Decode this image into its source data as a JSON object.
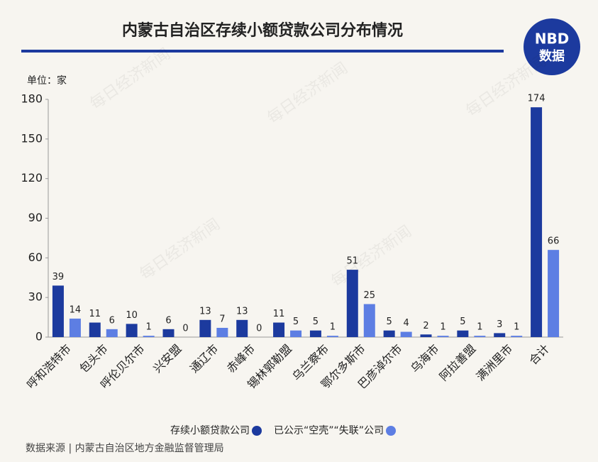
{
  "chart_data": {
    "type": "bar",
    "title": "内蒙古自治区存续小额贷款公司分布情况",
    "unit_label": "单位：家",
    "logo": {
      "top": "NBD",
      "bottom": "数据"
    },
    "watermark": "每日经济新闻",
    "source": "数据来源 | 内蒙古自治区地方金融监督管理局",
    "categories": [
      "呼和浩特市",
      "包头市",
      "呼伦贝尔市",
      "兴安盟",
      "通辽市",
      "赤峰市",
      "锡林郭勒盟",
      "乌兰察布",
      "鄂尔多斯市",
      "巴彦淖尔市",
      "乌海市",
      "阿拉善盟",
      "满洲里市",
      "合计"
    ],
    "series": [
      {
        "name": "存续小额贷款公司",
        "color": "#1c3a9e",
        "values": [
          39,
          11,
          10,
          6,
          13,
          13,
          11,
          5,
          51,
          5,
          2,
          5,
          3,
          174
        ]
      },
      {
        "name": "已公示“空壳”“失联”公司",
        "color": "#5d7ee3",
        "values": [
          14,
          6,
          1,
          0,
          7,
          0,
          5,
          1,
          25,
          4,
          1,
          1,
          1,
          66
        ]
      }
    ],
    "ylim": [
      0,
      180
    ],
    "yticks": [
      0,
      30,
      60,
      90,
      120,
      150,
      180
    ],
    "grid": false,
    "legend": "bottom-right"
  }
}
